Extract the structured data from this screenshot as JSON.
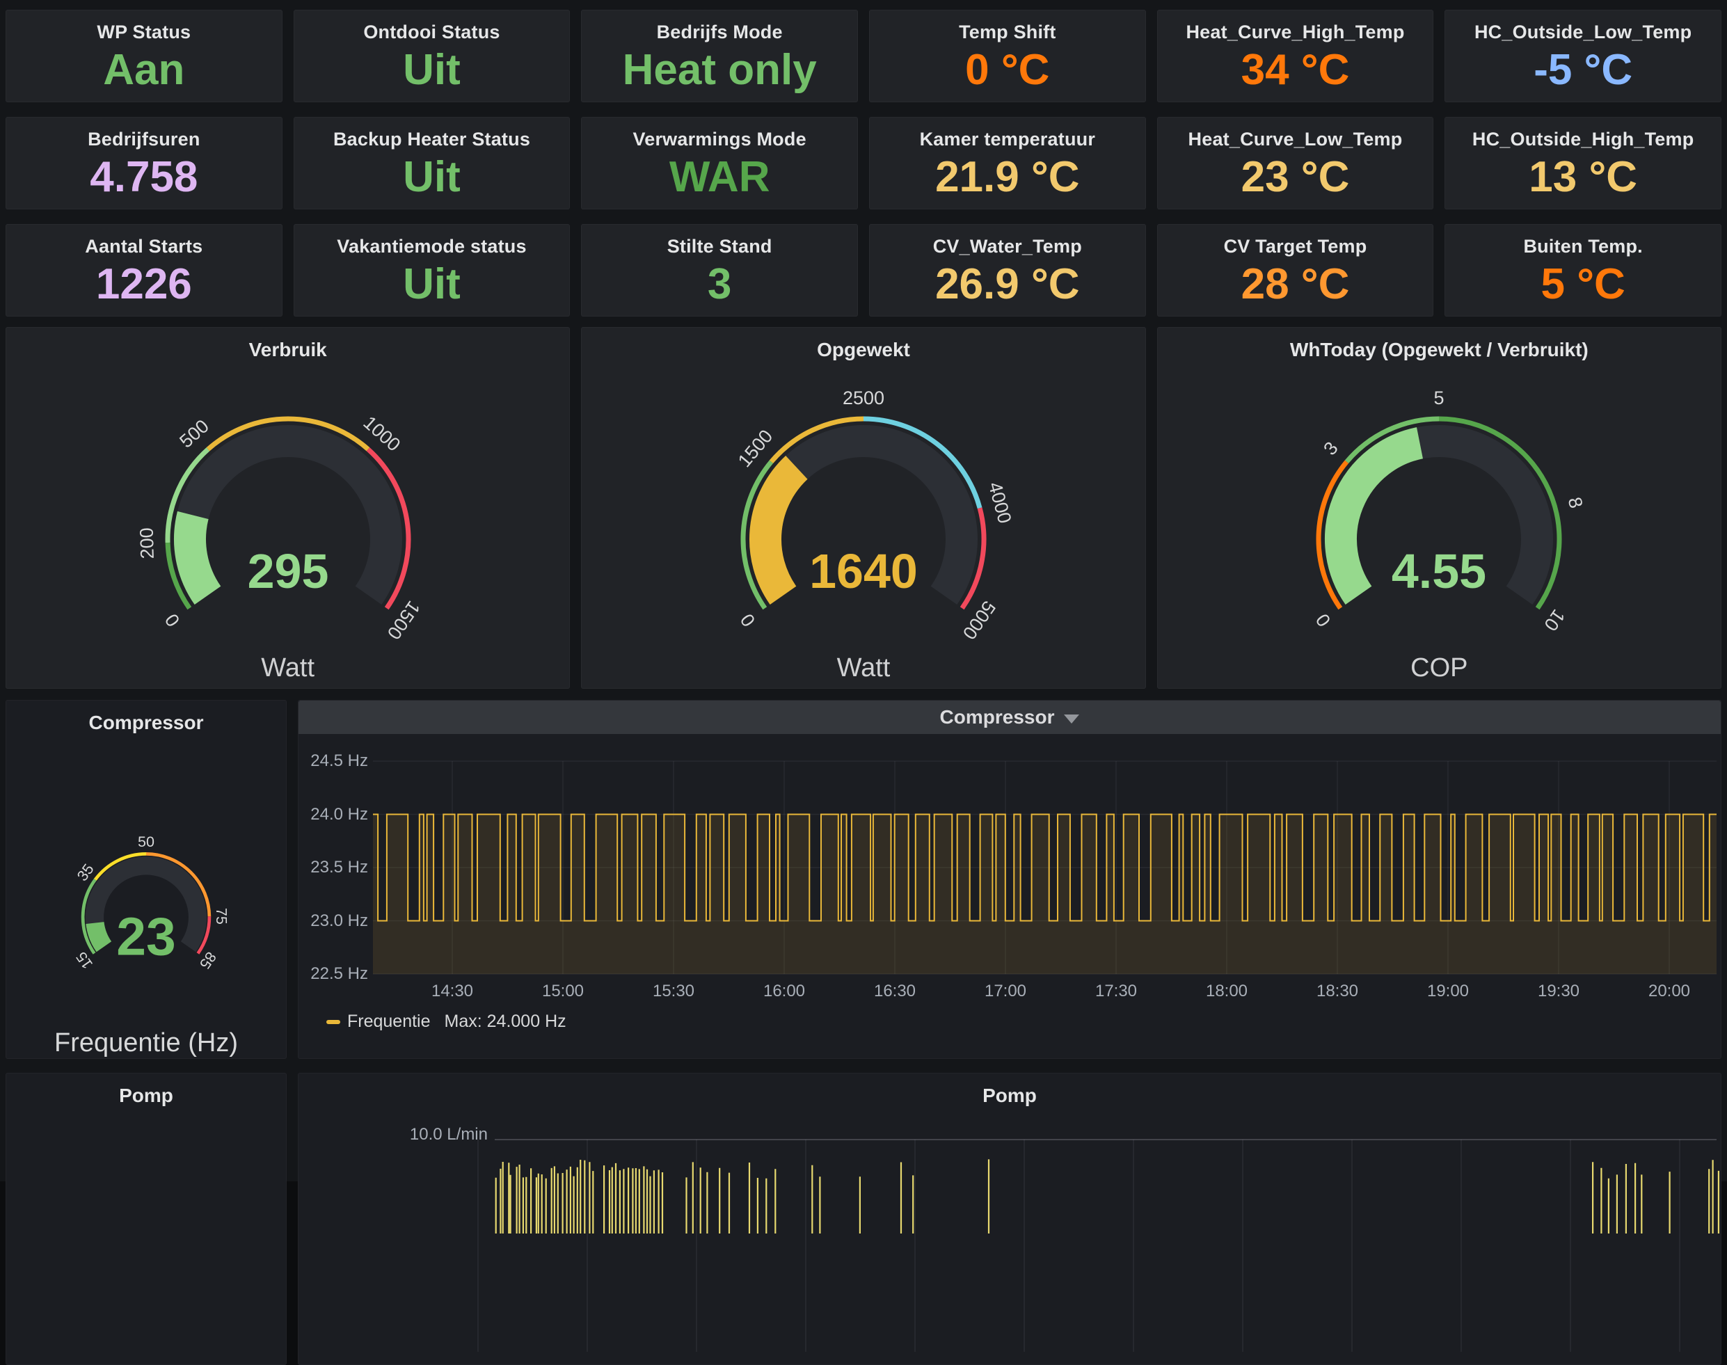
{
  "page": {
    "bg_color": "#141619",
    "panel_color": "#212327",
    "accent_yellow": "#EAB839",
    "accent_green": "#73BF69",
    "accent_orange": "#FF780A",
    "accent_red": "#F2495C"
  },
  "stats": [
    {
      "title": "WP Status",
      "value": "Aan",
      "color": "#73BF69"
    },
    {
      "title": "Ontdooi Status",
      "value": "Uit",
      "color": "#73BF69"
    },
    {
      "title": "Bedrijfs Mode",
      "value": "Heat only",
      "color": "#73BF69"
    },
    {
      "title": "Temp Shift",
      "value": "0 °C",
      "color": "#FF780A"
    },
    {
      "title": "Heat_Curve_High_Temp",
      "value": "34 °C",
      "color": "#FF780A"
    },
    {
      "title": "HC_Outside_Low_Temp",
      "value": "-5 °C",
      "color": "#8AB8FF"
    },
    {
      "title": "Bedrijfsuren",
      "value": "4.758",
      "color": "#DEB6F2"
    },
    {
      "title": "Backup Heater Status",
      "value": "Uit",
      "color": "#73BF69"
    },
    {
      "title": "Verwarmings Mode",
      "value": "WAR",
      "color": "#56A64B"
    },
    {
      "title": "Kamer temperatuur",
      "value": "21.9 °C",
      "color": "#F2C96D"
    },
    {
      "title": "Heat_Curve_Low_Temp",
      "value": "23 °C",
      "color": "#F2C96D"
    },
    {
      "title": "HC_Outside_High_Temp",
      "value": "13 °C",
      "color": "#F2C96D"
    },
    {
      "title": "Aantal Starts",
      "value": "1226",
      "color": "#DEB6F2"
    },
    {
      "title": "Vakantiemode status",
      "value": "Uit",
      "color": "#73BF69"
    },
    {
      "title": "Stilte Stand",
      "value": "3",
      "color": "#73BF69"
    },
    {
      "title": "CV_Water_Temp",
      "value": "26.9 °C",
      "color": "#F2C96D"
    },
    {
      "title": "CV Target Temp",
      "value": "28 °C",
      "color": "#FF9830"
    },
    {
      "title": "Buiten Temp.",
      "value": "5 °C",
      "color": "#FF780A"
    }
  ],
  "chart_data": [
    {
      "type": "gauge",
      "title": "Verbruik",
      "unit": "Watt",
      "min": 0,
      "max": 1500,
      "value": 295,
      "value_text": "295",
      "tick_labels": [
        "0",
        "200",
        "500",
        "1000",
        "1500"
      ],
      "ticks": [
        0,
        200,
        500,
        1000,
        1500
      ],
      "thresholds": [
        {
          "from": 0,
          "to": 200,
          "color": "#56A64B"
        },
        {
          "from": 200,
          "to": 500,
          "color": "#96D98D"
        },
        {
          "from": 500,
          "to": 1000,
          "color": "#EAB839"
        },
        {
          "from": 1000,
          "to": 1500,
          "color": "#F2495C"
        }
      ],
      "fill_color": "#96D98D",
      "value_color": "#96D98D"
    },
    {
      "type": "gauge",
      "title": "Opgewekt",
      "unit": "Watt",
      "min": 0,
      "max": 5000,
      "value": 1640,
      "value_text": "1640",
      "tick_labels": [
        "0",
        "1500",
        "2500",
        "4000",
        "5000"
      ],
      "ticks": [
        0,
        1500,
        2500,
        4000,
        5000
      ],
      "thresholds": [
        {
          "from": 0,
          "to": 1500,
          "color": "#73BF69"
        },
        {
          "from": 1500,
          "to": 2500,
          "color": "#EAB839"
        },
        {
          "from": 2500,
          "to": 4000,
          "color": "#6ED0E0"
        },
        {
          "from": 4000,
          "to": 5000,
          "color": "#F2495C"
        }
      ],
      "fill_color": "#EAB839",
      "value_color": "#EAB839"
    },
    {
      "type": "gauge",
      "title": "WhToday (Opgewekt / Verbruikt)",
      "unit": "COP",
      "min": 0,
      "max": 10,
      "value": 4.55,
      "value_text": "4.55",
      "tick_labels": [
        "0",
        "3",
        "5",
        "8",
        "10"
      ],
      "ticks": [
        0,
        3,
        5,
        8,
        10
      ],
      "thresholds": [
        {
          "from": 0,
          "to": 3,
          "color": "#FF780A"
        },
        {
          "from": 3,
          "to": 5,
          "color": "#73BF69"
        },
        {
          "from": 5,
          "to": 10,
          "color": "#56A64B"
        }
      ],
      "fill_color": "#96D98D",
      "value_color": "#96D98D"
    },
    {
      "type": "gauge",
      "title": "Compressor",
      "unit": "Frequentie (Hz)",
      "min": 15,
      "max": 85,
      "value": 23,
      "value_text": "23",
      "tick_labels": [
        "15",
        "35",
        "50",
        "75",
        "85"
      ],
      "ticks": [
        15,
        35,
        50,
        75,
        85
      ],
      "thresholds": [
        {
          "from": 15,
          "to": 35,
          "color": "#73BF69"
        },
        {
          "from": 35,
          "to": 50,
          "color": "#FADE2A"
        },
        {
          "from": 50,
          "to": 75,
          "color": "#FF9830"
        },
        {
          "from": 75,
          "to": 85,
          "color": "#F2495C"
        }
      ],
      "fill_color": "#73BF69",
      "value_color": "#73BF69"
    },
    {
      "type": "line",
      "title": "Compressor",
      "ylabel": "Hz",
      "ylim": [
        22.5,
        24.5
      ],
      "grid": true,
      "legend_position": "bottom-left",
      "yticks": [
        "24.5 Hz",
        "24.0 Hz",
        "23.5 Hz",
        "23.0 Hz",
        "22.5 Hz"
      ],
      "ytick_values": [
        24.5,
        24.0,
        23.5,
        23.0,
        22.5
      ],
      "xticks": [
        "14:30",
        "15:00",
        "15:30",
        "16:00",
        "16:30",
        "17:00",
        "17:30",
        "18:00",
        "18:30",
        "19:00",
        "19:30",
        "20:00"
      ],
      "legend": {
        "series": "Frequentie",
        "max": "Max: 24.000 Hz"
      },
      "series": [
        {
          "name": "Frequentie",
          "color": "#EAB839",
          "fill_opacity": 0.11,
          "pattern": "square_wave",
          "levels_hz": [
            23.0,
            24.0
          ],
          "max_hz": 24.0,
          "gen": {
            "seed": 1234,
            "high_run": [
              5,
              33
            ],
            "low_run": [
              3,
              17
            ]
          }
        }
      ]
    },
    {
      "type": "line",
      "title": "Pomp",
      "ytick_label": "10.0 L/min",
      "ylabel": "L/min",
      "grid": true,
      "series": [
        {
          "name": "Pomp",
          "color": "#E8D96F",
          "pattern": "spikes",
          "gen": {
            "seed": 77,
            "min_h": 5,
            "max_h": 34
          }
        }
      ],
      "spike_clusters": [
        {
          "x0": 284,
          "x1": 424,
          "n": 26
        },
        {
          "x0": 440,
          "x1": 524,
          "n": 16
        },
        {
          "x0": 557,
          "x1": 587,
          "n": 4
        },
        {
          "x0": 604,
          "x1": 617,
          "n": 2
        },
        {
          "x0": 650,
          "x1": 684,
          "n": 4
        },
        {
          "x0": 740,
          "x1": 750,
          "n": 2
        },
        {
          "x0": 804,
          "x1": 812,
          "n": 1
        },
        {
          "x0": 867,
          "x1": 882,
          "n": 2
        },
        {
          "x0": 990,
          "x1": 994,
          "n": 1
        },
        {
          "x0": 1860,
          "x1": 1932,
          "n": 7
        },
        {
          "x0": 1967,
          "x1": 1972,
          "n": 1
        },
        {
          "x0": 2027,
          "x1": 2042,
          "n": 3
        }
      ]
    }
  ],
  "pomp_left": {
    "title": "Pomp"
  }
}
